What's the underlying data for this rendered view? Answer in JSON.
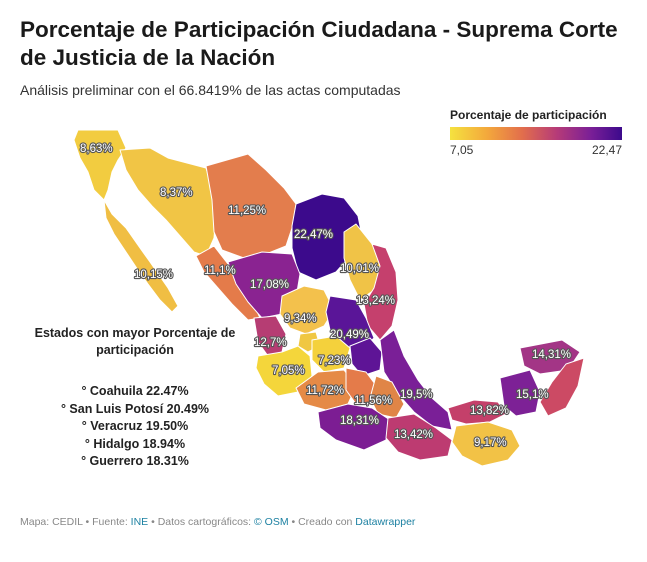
{
  "header": {
    "title": "Porcentaje de Participación Ciudadana - Suprema Corte de Justicia de la Nación",
    "subtitle": "Análisis preliminar con el 66.8419% de las actas computadas"
  },
  "legend": {
    "title": "Porcentaje de participación",
    "min_label": "7,05",
    "max_label": "22,47",
    "min": 7.05,
    "max": 22.47
  },
  "map_labels": [
    "8,63%",
    "8,37%",
    "11,25%",
    "22,47%",
    "10,15%",
    "11,1%",
    "17,08%",
    "10,01%",
    "13,24%",
    "9,34%",
    "20,49%",
    "12,7%",
    "7,23%",
    "7,05%",
    "11,72%",
    "11,56%",
    "19,5%",
    "18,31%",
    "13,42%",
    "13,82%",
    "9,17%",
    "15,1%",
    "14,31%"
  ],
  "annotation": {
    "heading": "Estados con mayor Porcentaje de participación",
    "items": [
      "° Coahuila 22.47%",
      "° San Luis Potosí 20.49%",
      "° Veracruz 19.50%",
      "° Hidalgo 18.94%",
      "° Guerrero 18.31%"
    ]
  },
  "footer": {
    "prefix": "Mapa: CEDIL • Fuente: ",
    "source": "INE",
    "mid": " • Datos cartográficos: ",
    "osm": "© OSM",
    "created": " • Creado con ",
    "tool": "Datawrapper"
  },
  "colors": {
    "low": "#f5e23f",
    "high": "#3c0a8c",
    "text": "#1a1a1a",
    "link": "#1d81a2"
  }
}
